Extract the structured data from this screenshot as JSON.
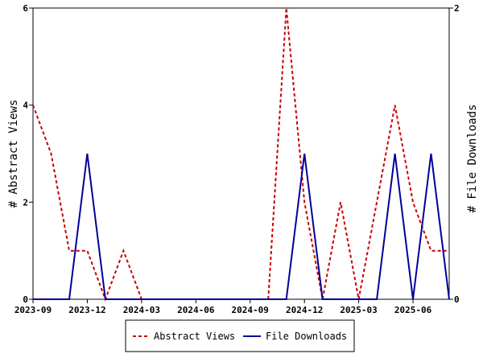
{
  "chart_data": {
    "type": "line",
    "x": [
      "2023-09",
      "2023-10",
      "2023-11",
      "2023-12",
      "2024-01",
      "2024-02",
      "2024-03",
      "2024-04",
      "2024-05",
      "2024-06",
      "2024-07",
      "2024-08",
      "2024-09",
      "2024-10",
      "2024-11",
      "2024-12",
      "2025-01",
      "2025-02",
      "2025-03",
      "2025-04",
      "2025-05",
      "2025-06",
      "2025-07",
      "2025-08"
    ],
    "x_tick_labels": [
      "2023-09",
      "2023-12",
      "2024-03",
      "2024-06",
      "2024-09",
      "2024-12",
      "2025-03",
      "2025-06"
    ],
    "series": [
      {
        "name": "Abstract Views",
        "axis": "left",
        "color": "#cc0000",
        "dash": "dashed",
        "values": [
          4,
          3,
          1,
          1,
          0,
          1,
          0,
          0,
          0,
          0,
          0,
          0,
          0,
          0,
          6,
          2,
          0,
          2,
          0,
          2,
          4,
          2,
          1,
          1
        ]
      },
      {
        "name": "File Downloads",
        "axis": "right",
        "color": "#000099",
        "dash": "solid",
        "values": [
          0,
          0,
          0,
          1,
          0,
          0,
          0,
          0,
          0,
          0,
          0,
          0,
          0,
          0,
          0,
          1,
          0,
          0,
          0,
          0,
          1,
          0,
          1,
          0
        ]
      }
    ],
    "ylabel": "# Abstract Views",
    "y2label": "# File Downloads",
    "ylim": [
      0,
      6
    ],
    "y2lim": [
      0,
      2
    ],
    "y_ticks": [
      "0",
      "2",
      "4",
      "6"
    ],
    "y2_ticks": [
      "0",
      "2"
    ],
    "legend_position": "bottom"
  }
}
